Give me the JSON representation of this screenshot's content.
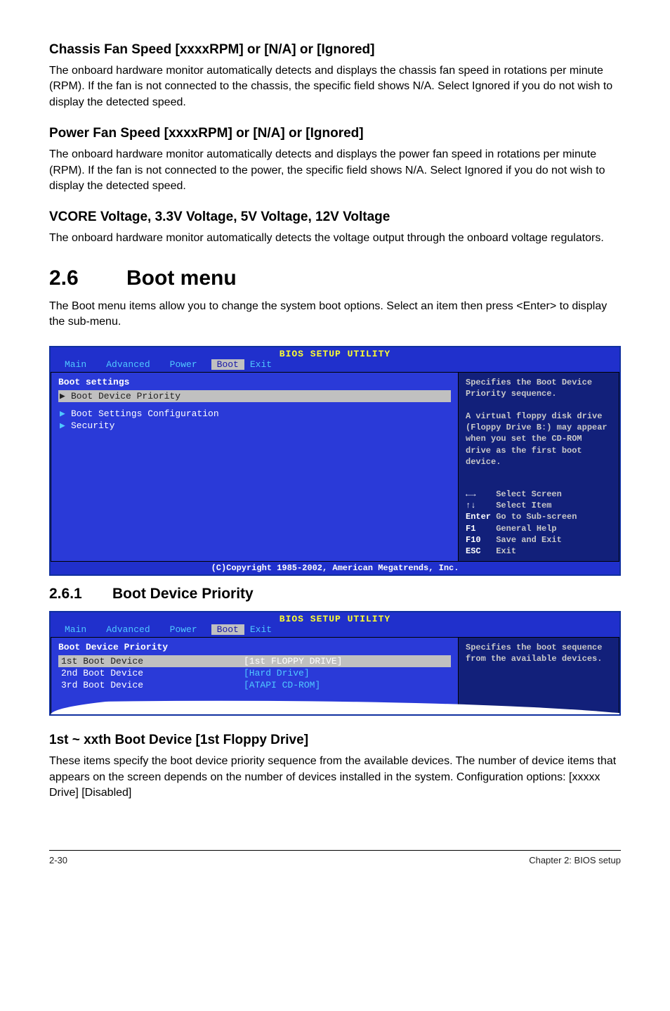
{
  "sections": {
    "chassis": {
      "heading": "Chassis Fan Speed [xxxxRPM] or [N/A] or [Ignored]",
      "body": "The onboard hardware monitor automatically detects and displays the chassis fan speed in rotations per minute (RPM). If the fan is not connected to the chassis, the specific field shows N/A. Select Ignored if you do not wish to display the detected speed."
    },
    "power": {
      "heading": "Power Fan Speed [xxxxRPM] or [N/A] or [Ignored]",
      "body": "The onboard hardware monitor automatically detects and displays the power fan speed in rotations per minute (RPM). If the fan is not connected to the power, the specific field shows N/A. Select Ignored if you do not wish to display the detected speed."
    },
    "vcore": {
      "heading": "VCORE Voltage, 3.3V Voltage, 5V Voltage, 12V Voltage",
      "body": "The onboard hardware monitor automatically detects the voltage output through the onboard voltage regulators."
    },
    "bootmenu": {
      "num": "2.6",
      "title": "Boot menu",
      "body": "The Boot menu items allow you to change the system boot options. Select an item then press <Enter> to display the sub-menu."
    },
    "bootpriority": {
      "num": "2.6.1",
      "title": "Boot Device Priority"
    },
    "firstboot": {
      "heading": "1st ~ xxth Boot Device [1st Floppy Drive]",
      "body": "These items specify the boot device priority sequence from the available devices. The number of device items that appears on the screen depends on the number of devices installed in the system. Configuration options: [xxxxx Drive] [Disabled]"
    }
  },
  "bios1": {
    "title": "BIOS SETUP UTILITY",
    "tabs": [
      "Main",
      "Advanced",
      "Power",
      "Boot",
      "Exit"
    ],
    "active_tab": 3,
    "heading": "Boot settings",
    "items": [
      {
        "label": "Boot Device Priority",
        "selected": true
      },
      {
        "label": "Boot Settings Configuration",
        "selected": false
      },
      {
        "label": "Security",
        "selected": false
      }
    ],
    "help": "Specifies the Boot Device Priority sequence.\n\nA virtual floppy disk drive (Floppy Drive B:) may appear when you set the CD-ROM drive as the first boot device.",
    "nav": [
      {
        "k": "←→",
        "v": "Select Screen"
      },
      {
        "k": "↑↓",
        "v": "Select Item"
      },
      {
        "k": "Enter",
        "v": "Go to Sub-screen"
      },
      {
        "k": "F1",
        "v": "General Help"
      },
      {
        "k": "F10",
        "v": "Save and Exit"
      },
      {
        "k": "ESC",
        "v": "Exit"
      }
    ],
    "footer": "(C)Copyright 1985-2002, American Megatrends, Inc."
  },
  "bios2": {
    "title": "BIOS SETUP UTILITY",
    "tabs": [
      "Main",
      "Advanced",
      "Power",
      "Boot",
      "Exit"
    ],
    "active_tab": 3,
    "heading": "Boot Device Priority",
    "rows": [
      {
        "key": "1st Boot Device",
        "val": "[1st FLOPPY DRIVE]",
        "selected": true
      },
      {
        "key": "2nd Boot Device",
        "val": "[Hard Drive]",
        "selected": false
      },
      {
        "key": "3rd Boot Device",
        "val": "[ATAPI CD-ROM]",
        "selected": false
      }
    ],
    "help": "Specifies the boot sequence from the available devices."
  },
  "footer": {
    "left": "2-30",
    "right": "Chapter 2: BIOS setup"
  },
  "colors": {
    "bios_bg": "#2030cc",
    "bios_right_bg": "#12207a",
    "bios_highlight": "#c0c0c0",
    "bios_cyan": "#50c8ff",
    "bios_yellow": "#ffff30"
  }
}
